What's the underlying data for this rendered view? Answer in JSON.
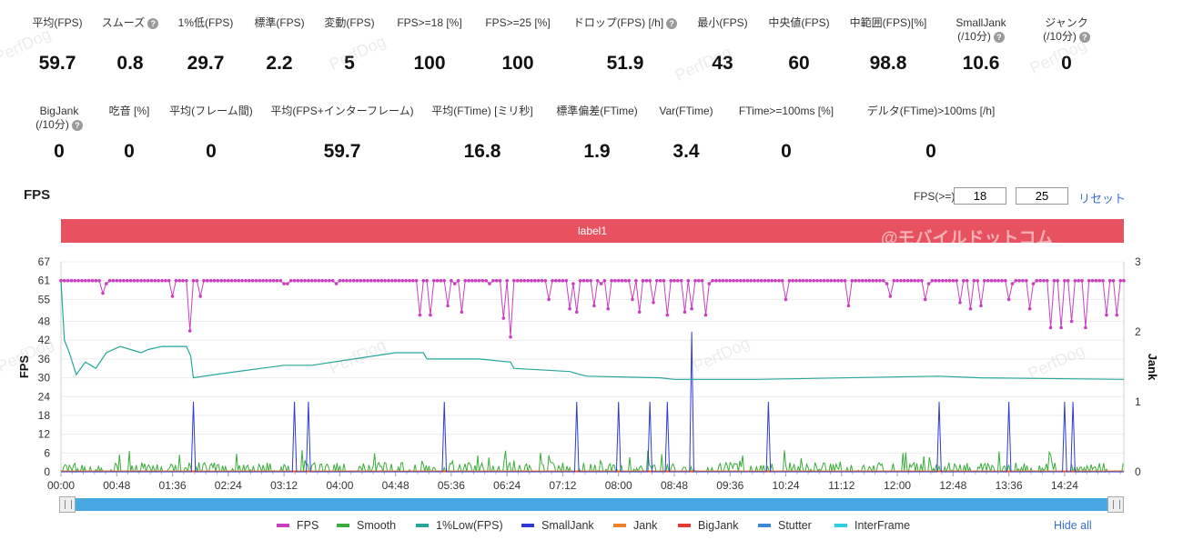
{
  "metrics_row1": [
    {
      "label": "平均(FPS)",
      "value": "59.7",
      "help": false
    },
    {
      "label": "スムーズ",
      "value": "0.8",
      "help": true
    },
    {
      "label": "1%低(FPS)",
      "value": "29.7",
      "help": false
    },
    {
      "label": "標準(FPS)",
      "value": "2.2",
      "help": false
    },
    {
      "label": "変動(FPS)",
      "value": "5",
      "help": false
    },
    {
      "label": "FPS>=18 [%]",
      "value": "100",
      "help": false
    },
    {
      "label": "FPS>=25 [%]",
      "value": "100",
      "help": false
    },
    {
      "label": "ドロップ(FPS) [/h]",
      "value": "51.9",
      "help": true
    },
    {
      "label": "最小(FPS)",
      "value": "43",
      "help": false
    },
    {
      "label": "中央値(FPS)",
      "value": "60",
      "help": false
    },
    {
      "label": "中範囲(FPS)[%]",
      "value": "98.8",
      "help": false
    },
    {
      "label": "SmallJank",
      "label2": "(/10分)",
      "value": "10.6",
      "help": true
    },
    {
      "label": "ジャンク",
      "label2": "(/10分)",
      "value": "0",
      "help": true
    }
  ],
  "metrics_row2": [
    {
      "label": "BigJank",
      "label2": "(/10分)",
      "value": "0",
      "help": true
    },
    {
      "label": "吃音 [%]",
      "value": "0",
      "help": false
    },
    {
      "label": "平均(フレーム間)",
      "value": "0",
      "help": false
    },
    {
      "label": "平均(FPS+インターフレーム)",
      "value": "59.7",
      "help": false
    },
    {
      "label": "平均(FTime) [ミリ秒]",
      "value": "16.8",
      "help": false
    },
    {
      "label": "標準偏差(FTime)",
      "value": "1.9",
      "help": false
    },
    {
      "label": "Var(FTime)",
      "value": "3.4",
      "help": false
    },
    {
      "label": "FTime>=100ms [%]",
      "value": "0",
      "help": false
    },
    {
      "label": "デルタ(FTime)>100ms [/h]",
      "value": "0",
      "help": false
    }
  ],
  "section_title": "FPS",
  "threshold_label": "FPS(>=)",
  "threshold_values": [
    "18",
    "25"
  ],
  "reset_label": "リセット",
  "band_label": "label1",
  "brand_overlay": "@モバイルドットコム",
  "watermark": "PerfDog",
  "hide_all_label": "Hide all",
  "colors": {
    "FPS": "#c83fc0",
    "Smooth": "#3aac3a",
    "1%Low(FPS)": "#26a69a",
    "SmallJank": "#2f3ad6",
    "Jank": "#f07f2a",
    "BigJank": "#e53935",
    "Stutter": "#3a88d8",
    "InterFrame": "#2bd0dc",
    "band": "#e8515f",
    "slider": "#48a8e3"
  },
  "chart_data": {
    "type": "line",
    "xlabel": "",
    "ylabel_left": "FPS",
    "ylabel_right": "Jank",
    "y_ticks_left": [
      0,
      6,
      12,
      18,
      24,
      30,
      36,
      42,
      48,
      55,
      61,
      67
    ],
    "y_ticks_right": [
      0,
      1,
      2,
      3
    ],
    "ylim_left": [
      0,
      67
    ],
    "ylim_right": [
      0,
      3
    ],
    "x_range_minutes": [
      0,
      15.25
    ],
    "x_ticks": [
      "00:00",
      "00:48",
      "01:36",
      "02:24",
      "03:12",
      "04:00",
      "04:48",
      "05:36",
      "06:24",
      "07:12",
      "08:00",
      "08:48",
      "09:36",
      "10:24",
      "11:12",
      "12:00",
      "12:48",
      "13:36",
      "14:24"
    ],
    "fps_baseline": 61,
    "fps_dips": [
      [
        0.6,
        57
      ],
      [
        1.6,
        56
      ],
      [
        1.85,
        45
      ],
      [
        2.0,
        56
      ],
      [
        5.15,
        50
      ],
      [
        5.3,
        50
      ],
      [
        5.55,
        53
      ],
      [
        5.75,
        51
      ],
      [
        6.35,
        49
      ],
      [
        6.45,
        43
      ],
      [
        7.0,
        55
      ],
      [
        7.3,
        52
      ],
      [
        7.4,
        51
      ],
      [
        7.65,
        53
      ],
      [
        7.85,
        52
      ],
      [
        8.2,
        55
      ],
      [
        8.3,
        51
      ],
      [
        8.5,
        54
      ],
      [
        8.7,
        50
      ],
      [
        8.95,
        51
      ],
      [
        9.05,
        52
      ],
      [
        9.25,
        50
      ],
      [
        10.4,
        55
      ],
      [
        11.3,
        53
      ],
      [
        11.9,
        56
      ],
      [
        12.4,
        55
      ],
      [
        12.9,
        54
      ],
      [
        13.05,
        52
      ],
      [
        13.2,
        53
      ],
      [
        13.6,
        55
      ],
      [
        13.9,
        52
      ],
      [
        14.2,
        46
      ],
      [
        14.35,
        46
      ],
      [
        14.5,
        48
      ],
      [
        14.7,
        46
      ],
      [
        15.0,
        50
      ],
      [
        15.15,
        50
      ]
    ],
    "low1_points": [
      [
        0.0,
        61
      ],
      [
        0.05,
        42
      ],
      [
        0.12,
        38
      ],
      [
        0.22,
        31
      ],
      [
        0.35,
        35
      ],
      [
        0.5,
        33
      ],
      [
        0.65,
        38
      ],
      [
        0.85,
        40
      ],
      [
        1.0,
        39
      ],
      [
        1.15,
        38
      ],
      [
        1.25,
        39
      ],
      [
        1.45,
        40
      ],
      [
        1.8,
        40
      ],
      [
        1.86,
        37
      ],
      [
        1.9,
        30
      ],
      [
        2.2,
        31
      ],
      [
        3.2,
        34
      ],
      [
        3.6,
        34
      ],
      [
        4.2,
        36
      ],
      [
        4.8,
        38
      ],
      [
        5.2,
        38
      ],
      [
        5.25,
        36
      ],
      [
        6.0,
        36
      ],
      [
        6.45,
        35
      ],
      [
        6.5,
        33
      ],
      [
        7.3,
        32
      ],
      [
        7.45,
        31
      ],
      [
        7.55,
        30.5
      ],
      [
        8.6,
        30
      ],
      [
        8.8,
        29.5
      ],
      [
        10.0,
        29.5
      ],
      [
        12.6,
        30.5
      ],
      [
        13.2,
        30
      ],
      [
        15.25,
        29.5
      ]
    ],
    "smalljank_spikes": [
      [
        1.9,
        1
      ],
      [
        3.35,
        1
      ],
      [
        3.55,
        1
      ],
      [
        5.5,
        1
      ],
      [
        7.4,
        1
      ],
      [
        8.0,
        1
      ],
      [
        8.45,
        1
      ],
      [
        8.7,
        1
      ],
      [
        9.05,
        2
      ],
      [
        10.15,
        1
      ],
      [
        12.6,
        1
      ],
      [
        13.6,
        1
      ],
      [
        14.4,
        1
      ],
      [
        14.52,
        1
      ]
    ]
  }
}
